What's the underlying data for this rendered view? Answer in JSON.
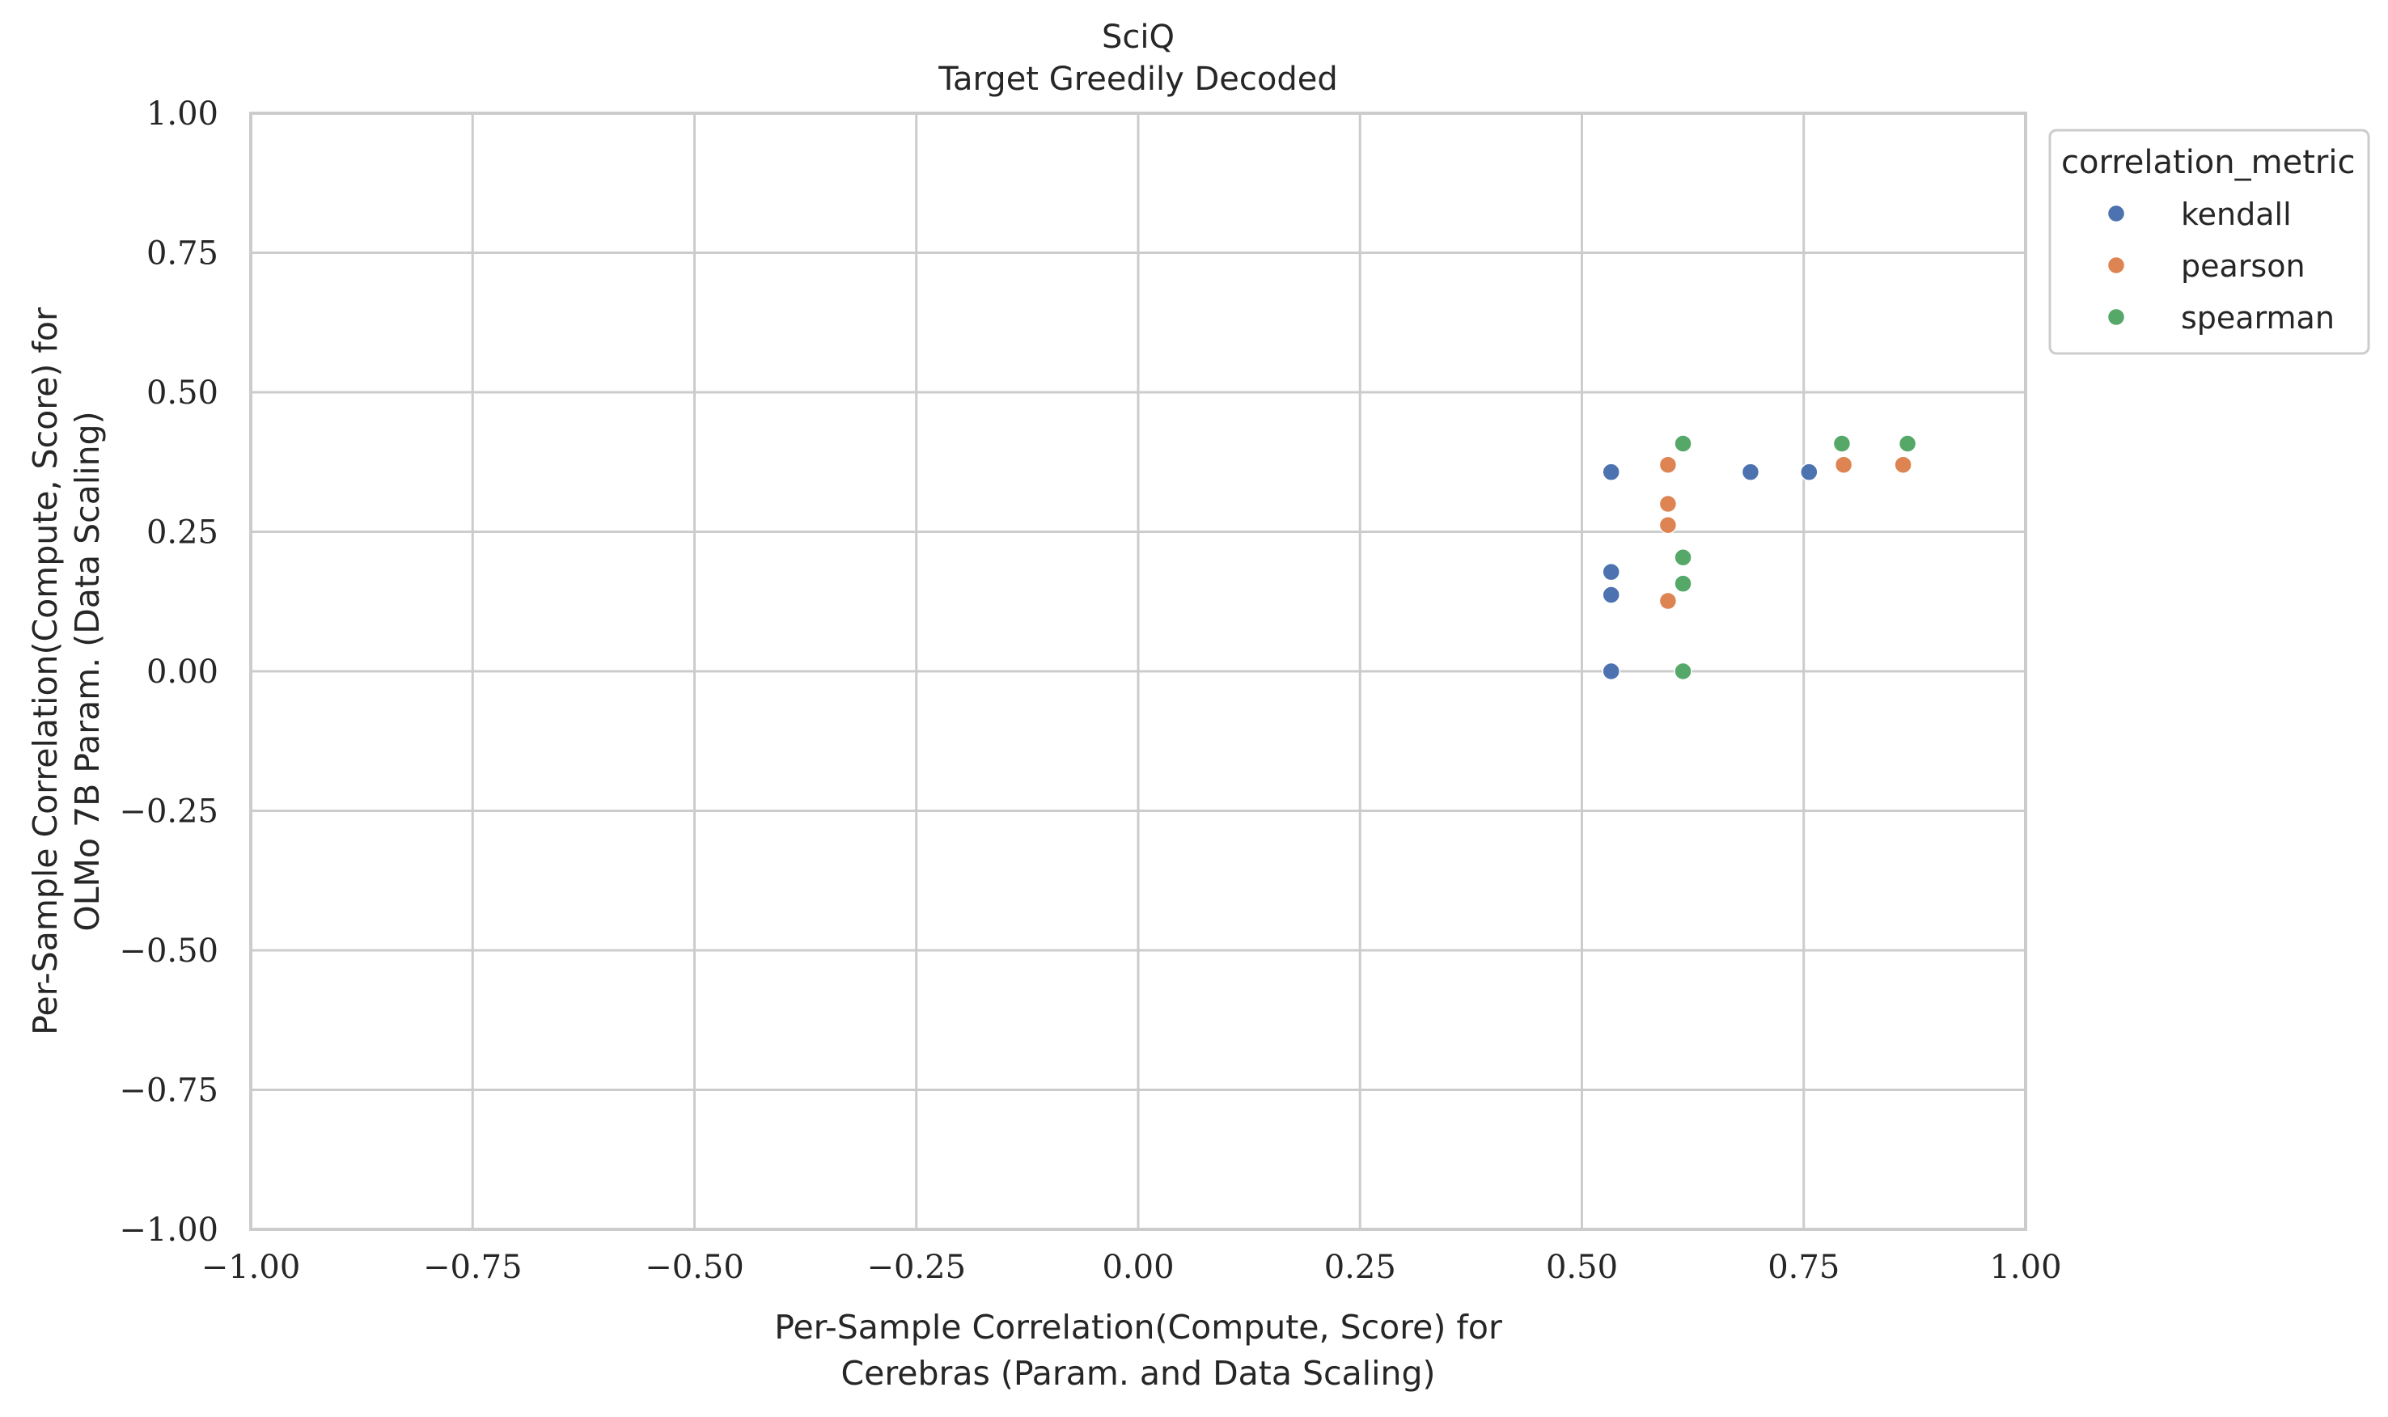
{
  "chart_data": {
    "type": "scatter",
    "title": "SciQ",
    "subtitle": "Target Greedily Decoded",
    "xlabel": [
      "Per-Sample Correlation(Compute, Score) for",
      "Cerebras (Param. and Data Scaling)"
    ],
    "ylabel": [
      "Per-Sample Correlation(Compute, Score) for",
      "OLMo 7B Param. (Data Scaling)"
    ],
    "xlim": [
      -1.0,
      1.0
    ],
    "ylim": [
      -1.0,
      1.0
    ],
    "xticks": [
      -1.0,
      -0.75,
      -0.5,
      -0.25,
      0.0,
      0.25,
      0.5,
      0.75,
      1.0
    ],
    "yticks": [
      -1.0,
      -0.75,
      -0.5,
      -0.25,
      0.0,
      0.25,
      0.5,
      0.75,
      1.0
    ],
    "xtick_labels": [
      "−1.00",
      "−0.75",
      "−0.50",
      "−0.25",
      "0.00",
      "0.25",
      "0.50",
      "0.75",
      "1.00"
    ],
    "ytick_labels": [
      "−1.00",
      "−0.75",
      "−0.50",
      "−0.25",
      "0.00",
      "0.25",
      "0.50",
      "0.75",
      "1.00"
    ],
    "grid": true,
    "legend": {
      "title": "correlation_metric",
      "placement": "outside-top-right"
    },
    "series": [
      {
        "name": "kendall",
        "color": "#4c72b0",
        "points": [
          [
            0.533,
            0.357
          ],
          [
            0.533,
            0.178
          ],
          [
            0.533,
            0.137
          ],
          [
            0.533,
            0.0
          ],
          [
            0.69,
            0.357
          ],
          [
            0.756,
            0.357
          ]
        ]
      },
      {
        "name": "pearson",
        "color": "#dd8452",
        "points": [
          [
            0.597,
            0.37
          ],
          [
            0.597,
            0.3
          ],
          [
            0.597,
            0.262
          ],
          [
            0.597,
            0.126
          ],
          [
            0.795,
            0.37
          ],
          [
            0.862,
            0.37
          ]
        ]
      },
      {
        "name": "spearman",
        "color": "#55a868",
        "points": [
          [
            0.614,
            0.408
          ],
          [
            0.614,
            0.204
          ],
          [
            0.614,
            0.157
          ],
          [
            0.614,
            0.0
          ],
          [
            0.793,
            0.408
          ],
          [
            0.867,
            0.408
          ]
        ]
      }
    ]
  }
}
